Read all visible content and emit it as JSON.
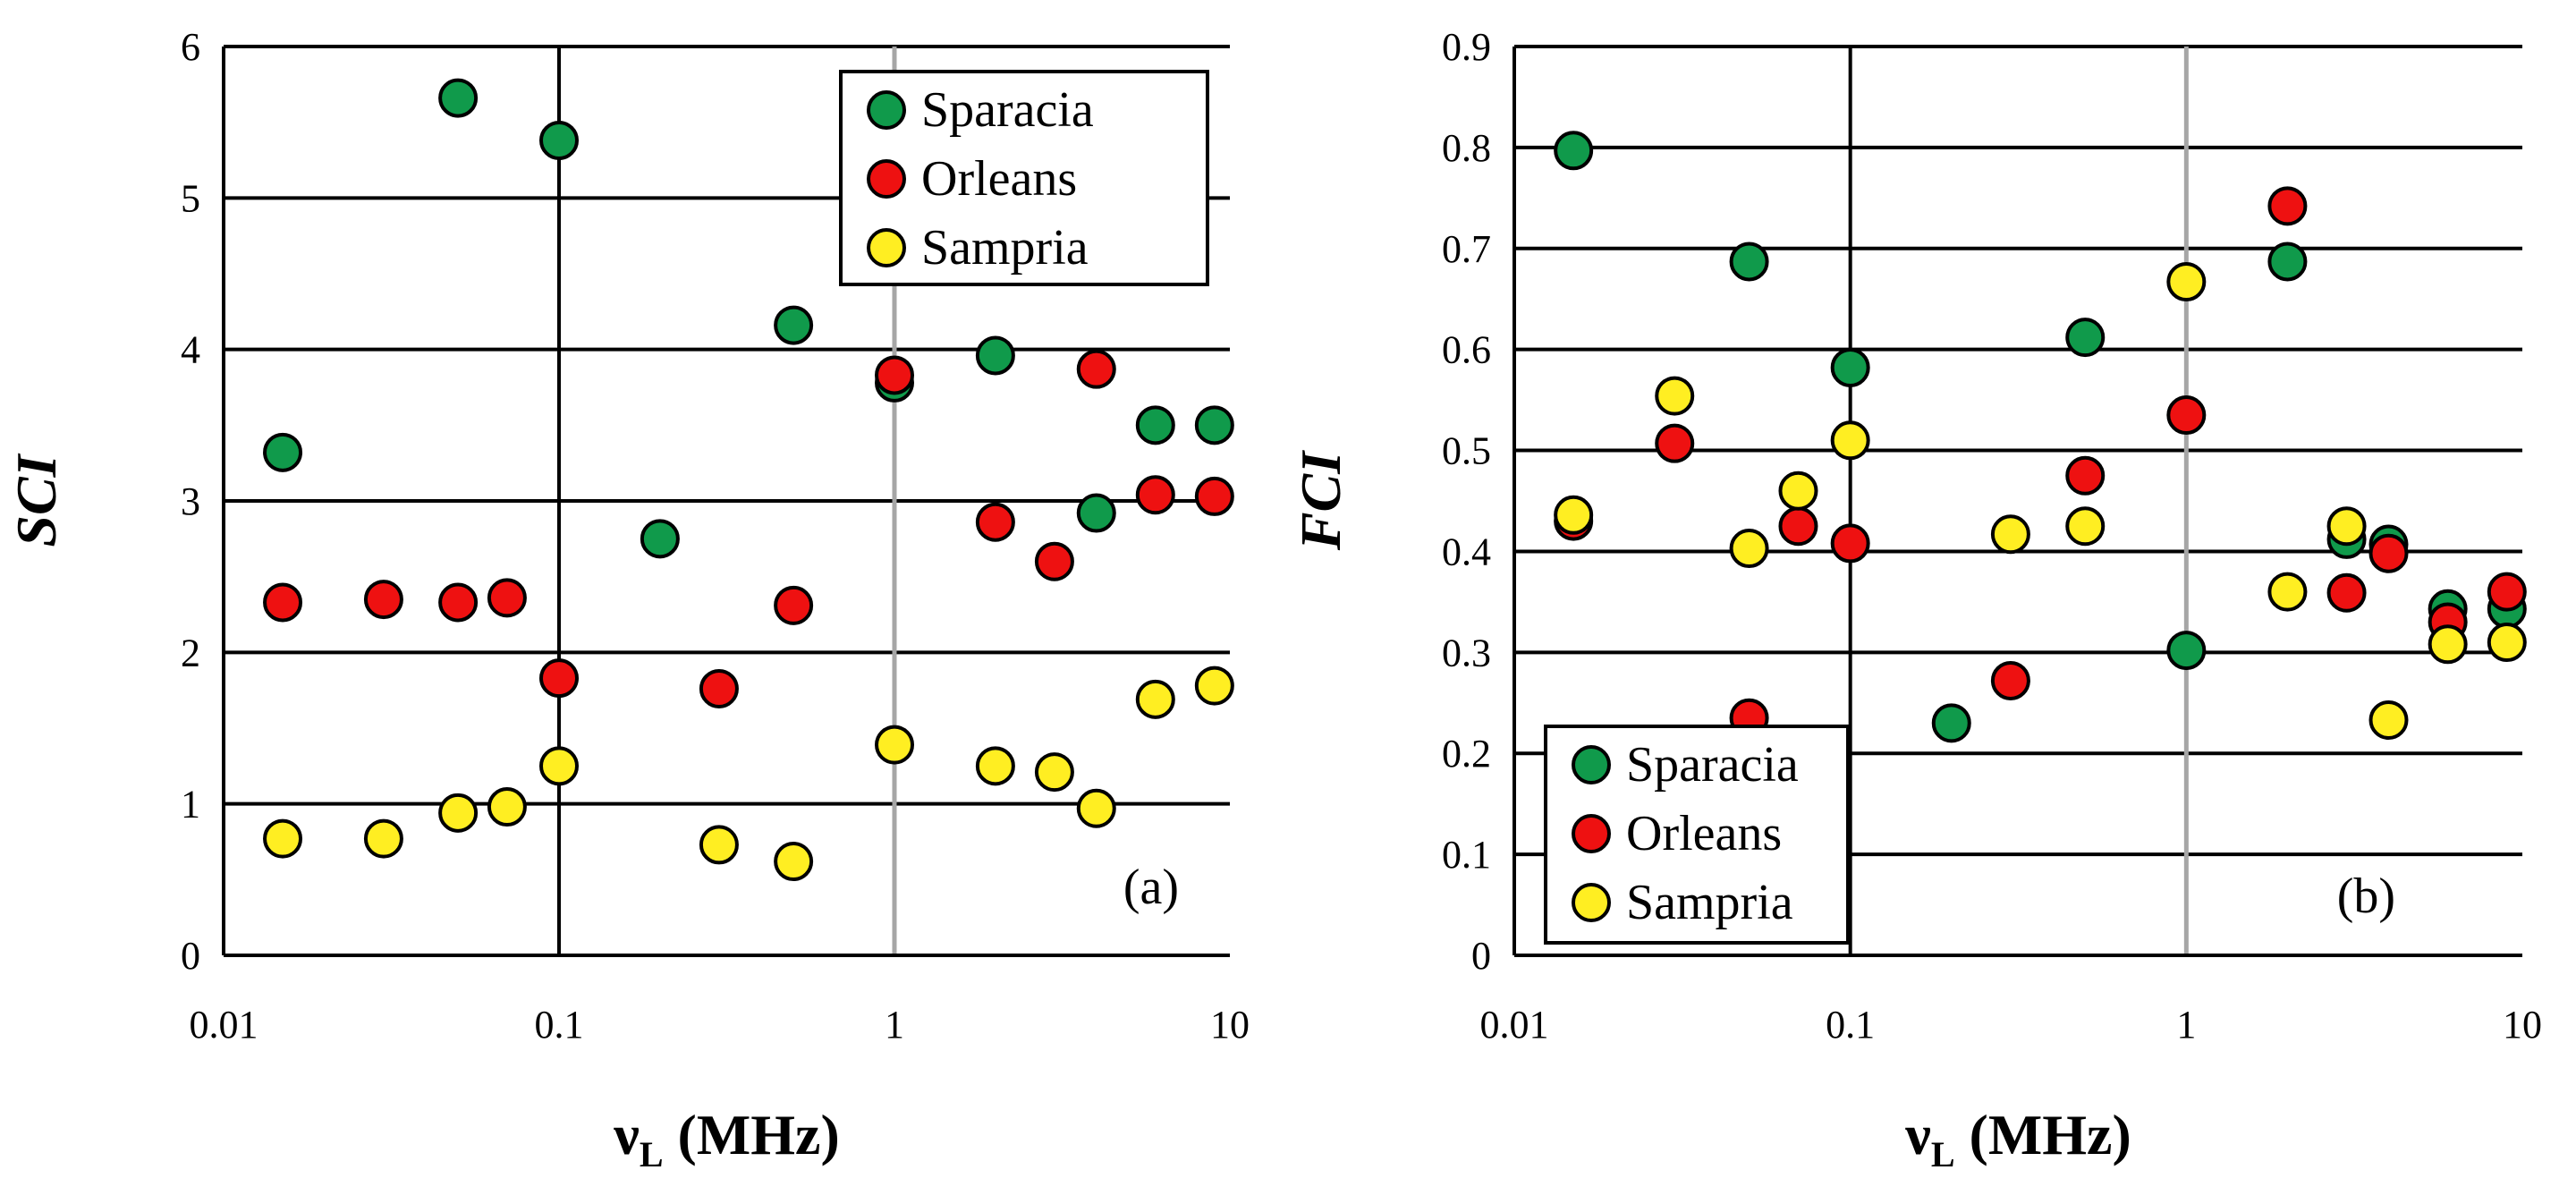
{
  "chart_data": [
    {
      "type": "scatter",
      "panel": "(a)",
      "ylabel": "SCI",
      "xlabel_main": "ν",
      "xlabel_sub": "L",
      "xlabel_unit": " (MHz)",
      "xscale": "log",
      "xlim": [
        0.01,
        10
      ],
      "ylim": [
        0,
        6
      ],
      "xticks": [
        0.01,
        0.1,
        1,
        10
      ],
      "xtick_labels": [
        "0.01",
        "0.1",
        "1",
        "10"
      ],
      "yticks": [
        0,
        1,
        2,
        3,
        4,
        5,
        6
      ],
      "ytick_labels": [
        "0",
        "1",
        "2",
        "3",
        "4",
        "5",
        "6"
      ],
      "legend_position": "top-right",
      "series": [
        {
          "name": "Sparacia",
          "color": "#109a4b",
          "points": [
            [
              0.015,
              3.32
            ],
            [
              0.05,
              5.66
            ],
            [
              0.1,
              5.38
            ],
            [
              0.2,
              2.75
            ],
            [
              0.5,
              4.16
            ],
            [
              1,
              3.78
            ],
            [
              2,
              3.96
            ],
            [
              4,
              2.92
            ],
            [
              6,
              3.5
            ],
            [
              9,
              3.5
            ]
          ]
        },
        {
          "name": "Orleans",
          "color": "#ee1111",
          "points": [
            [
              0.015,
              2.33
            ],
            [
              0.03,
              2.35
            ],
            [
              0.05,
              2.33
            ],
            [
              0.07,
              2.36
            ],
            [
              0.1,
              1.83
            ],
            [
              0.3,
              1.76
            ],
            [
              0.5,
              2.31
            ],
            [
              1,
              3.83
            ],
            [
              2,
              2.86
            ],
            [
              3,
              2.6
            ],
            [
              4,
              3.87
            ],
            [
              6,
              3.04
            ],
            [
              9,
              3.03
            ]
          ]
        },
        {
          "name": "Sampria",
          "color": "#ffee22",
          "points": [
            [
              0.015,
              0.77
            ],
            [
              0.03,
              0.77
            ],
            [
              0.05,
              0.94
            ],
            [
              0.07,
              0.98
            ],
            [
              0.1,
              1.25
            ],
            [
              0.3,
              0.73
            ],
            [
              0.5,
              0.62
            ],
            [
              1,
              1.39
            ],
            [
              2,
              1.25
            ],
            [
              3,
              1.21
            ],
            [
              4,
              0.97
            ],
            [
              6,
              1.69
            ],
            [
              9,
              1.78
            ]
          ]
        }
      ]
    },
    {
      "type": "scatter",
      "panel": "(b)",
      "ylabel": "FCI",
      "xlabel_main": "ν",
      "xlabel_sub": "L",
      "xlabel_unit": " (MHz)",
      "xscale": "log",
      "xlim": [
        0.01,
        10
      ],
      "ylim": [
        0,
        0.9
      ],
      "xticks": [
        0.01,
        0.1,
        1,
        10
      ],
      "xtick_labels": [
        "0.01",
        "0.1",
        "1",
        "10"
      ],
      "yticks": [
        0,
        0.1,
        0.2,
        0.3,
        0.4,
        0.5,
        0.6,
        0.7,
        0.8,
        0.9
      ],
      "ytick_labels": [
        "0",
        "0.1",
        "0.2",
        "0.3",
        "0.4",
        "0.5",
        "0.6",
        "0.7",
        "0.8",
        "0.9"
      ],
      "legend_position": "bottom-left",
      "series": [
        {
          "name": "Sparacia",
          "color": "#109a4b",
          "points": [
            [
              0.015,
              0.797
            ],
            [
              0.05,
              0.687
            ],
            [
              0.1,
              0.582
            ],
            [
              0.2,
              0.23
            ],
            [
              0.5,
              0.612
            ],
            [
              1,
              0.302
            ],
            [
              2,
              0.687
            ],
            [
              3,
              0.412
            ],
            [
              4,
              0.407
            ],
            [
              6,
              0.343
            ],
            [
              9,
              0.343
            ]
          ]
        },
        {
          "name": "Orleans",
          "color": "#ee1111",
          "points": [
            [
              0.015,
              0.43
            ],
            [
              0.03,
              0.507
            ],
            [
              0.05,
              0.235
            ],
            [
              0.07,
              0.425
            ],
            [
              0.1,
              0.408
            ],
            [
              0.3,
              0.272
            ],
            [
              0.5,
              0.475
            ],
            [
              1,
              0.535
            ],
            [
              2,
              0.742
            ],
            [
              3,
              0.359
            ],
            [
              4,
              0.398
            ],
            [
              6,
              0.33
            ],
            [
              9,
              0.36
            ]
          ]
        },
        {
          "name": "Sampria",
          "color": "#ffee22",
          "points": [
            [
              0.015,
              0.436
            ],
            [
              0.03,
              0.554
            ],
            [
              0.05,
              0.403
            ],
            [
              0.07,
              0.46
            ],
            [
              0.1,
              0.51
            ],
            [
              0.3,
              0.417
            ],
            [
              0.5,
              0.425
            ],
            [
              1,
              0.667
            ],
            [
              2,
              0.36
            ],
            [
              3,
              0.425
            ],
            [
              4,
              0.233
            ],
            [
              6,
              0.308
            ],
            [
              9,
              0.31
            ]
          ]
        }
      ]
    }
  ]
}
